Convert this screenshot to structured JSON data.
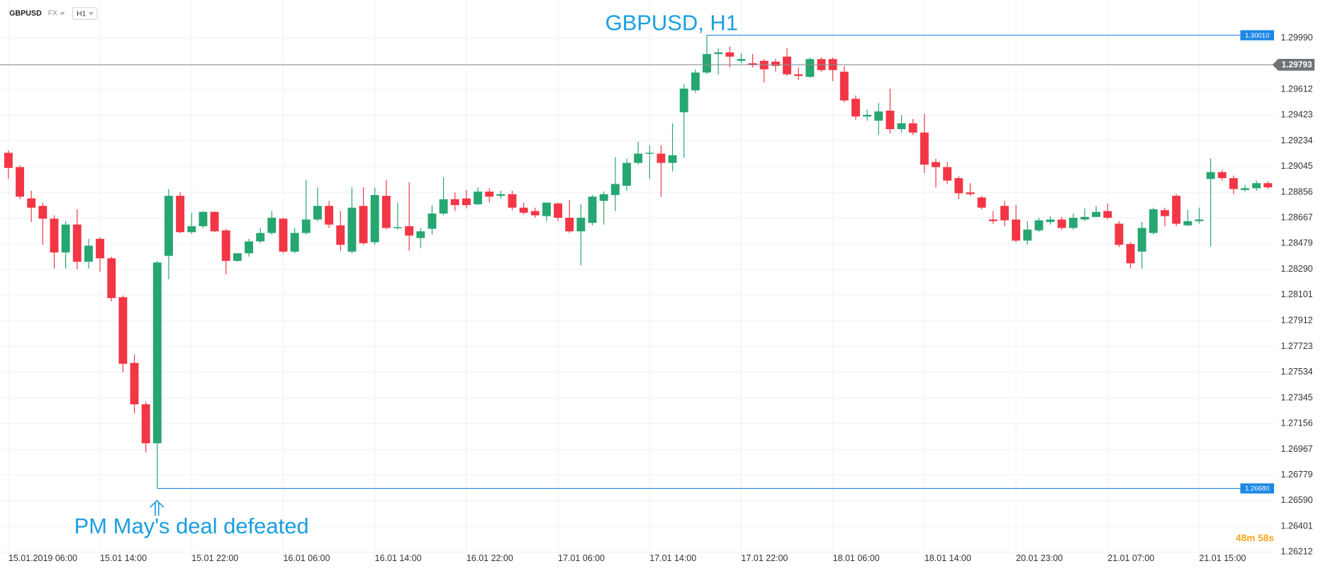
{
  "toolbar": {
    "symbol": "GBPUSD",
    "market": "FX",
    "timeframe": "H1"
  },
  "countdown": "48m 58s",
  "chart_data": {
    "type": "candlestick",
    "title": "GBPUSD, H1",
    "annotations": [
      "PM May's deal defeated"
    ],
    "up_color": "#26a671",
    "down_color": "#f23645",
    "grid": true,
    "categories": [
      "15.01.2019 06:00",
      null,
      null,
      null,
      null,
      null,
      null,
      null,
      "15.01 14:00",
      null,
      null,
      null,
      null,
      null,
      null,
      null,
      "15.01 22:00",
      null,
      null,
      null,
      null,
      null,
      null,
      null,
      "16.01 06:00",
      null,
      null,
      null,
      null,
      null,
      null,
      null,
      "16.01 14:00",
      null,
      null,
      null,
      null,
      null,
      null,
      null,
      "16.01 22:00",
      null,
      null,
      null,
      null,
      null,
      null,
      null,
      "17.01 06:00",
      null,
      null,
      null,
      null,
      null,
      null,
      null,
      "17.01 14:00",
      null,
      null,
      null,
      null,
      null,
      null,
      null,
      "17.01 22:00",
      null,
      null,
      null,
      null,
      null,
      null,
      null,
      "18.01 06:00",
      null,
      null,
      null,
      null,
      null,
      null,
      null,
      "18.01 14:00",
      null,
      null,
      null,
      null,
      null,
      null,
      null,
      "20.01 23:00",
      null,
      null,
      null,
      null,
      null,
      null,
      null,
      "21.01 07:00",
      null,
      null,
      null,
      null,
      null,
      null,
      null,
      "21.01 15:00",
      null,
      null,
      null,
      null,
      null,
      null
    ],
    "open": [
      1.29146,
      1.29041,
      1.28811,
      1.28756,
      1.28662,
      1.28414,
      1.28619,
      1.28346,
      1.28514,
      1.28371,
      1.28085,
      1.27602,
      1.27298,
      1.27012,
      1.28389,
      1.2883,
      1.28563,
      1.28607,
      1.28712,
      1.28576,
      1.28352,
      1.28408,
      1.28495,
      1.28557,
      1.28662,
      1.2842,
      1.28557,
      1.28656,
      1.28756,
      1.28613,
      1.2842,
      1.28756,
      1.28489,
      1.2883,
      1.28594,
      1.28607,
      1.2852,
      1.28588,
      1.287,
      1.28805,
      1.28811,
      1.28768,
      1.28861,
      1.2883,
      1.28842,
      1.28743,
      1.28718,
      1.28681,
      1.28774,
      1.28669,
      1.28569,
      1.28631,
      1.28793,
      1.28836,
      1.28904,
      1.29072,
      1.2914,
      1.2914,
      1.29072,
      1.29444,
      1.29605,
      1.29736,
      1.29872,
      1.29884,
      1.29822,
      1.29804,
      1.29822,
      1.29816,
      1.29853,
      1.29723,
      1.29704,
      1.29835,
      1.29835,
      1.29742,
      1.29543,
      1.29413,
      1.29382,
      1.29456,
      1.2932,
      1.29363,
      1.29295,
      1.29078,
      1.29041,
      1.2896,
      1.28855,
      1.28818,
      1.28656,
      1.28756,
      1.28656,
      1.28501,
      1.28576,
      1.28638,
      1.28656,
      1.28594,
      1.28656,
      1.28675,
      1.28718,
      1.28625,
      1.28476,
      1.2842,
      1.28557,
      1.28725,
      1.2883,
      1.28613,
      1.28644,
      1.28954,
      1.29004,
      1.2896,
      1.28873,
      1.28886,
      1.28923
    ],
    "high": [
      1.29165,
      1.29053,
      1.28867,
      1.2878,
      1.28687,
      1.28644,
      1.28731,
      1.28514,
      1.28526,
      1.28383,
      1.28098,
      1.27664,
      1.27316,
      1.28352,
      1.28879,
      1.28855,
      1.28706,
      1.28718,
      1.28715,
      1.28588,
      1.2841,
      1.28514,
      1.28594,
      1.28718,
      1.28669,
      1.28594,
      1.28948,
      1.28892,
      1.28793,
      1.28718,
      1.28892,
      1.28892,
      1.28892,
      1.28948,
      1.2878,
      1.28929,
      1.28594,
      1.28762,
      1.28966,
      1.28855,
      1.28873,
      1.28892,
      1.28886,
      1.28867,
      1.28867,
      1.2878,
      1.28743,
      1.28782,
      1.2878,
      1.28799,
      1.28768,
      1.28836,
      1.28861,
      1.29115,
      1.29103,
      1.29227,
      1.29202,
      1.29202,
      1.29363,
      1.29649,
      1.2976,
      1.3001,
      1.29915,
      1.29928,
      1.29878,
      1.29872,
      1.29835,
      1.29835,
      1.29915,
      1.29773,
      1.29847,
      1.29847,
      1.29847,
      1.29785,
      1.29568,
      1.29463,
      1.29512,
      1.29618,
      1.29425,
      1.29394,
      1.29432,
      1.29103,
      1.29078,
      1.28973,
      1.28923,
      1.2883,
      1.28718,
      1.28793,
      1.28762,
      1.28644,
      1.28669,
      1.28681,
      1.28675,
      1.287,
      1.28737,
      1.28756,
      1.28774,
      1.28644,
      1.28489,
      1.28638,
      1.28743,
      1.28743,
      1.28842,
      1.28725,
      1.28743,
      1.29103,
      1.29022,
      1.28979,
      1.28911,
      1.28942,
      1.28935
    ],
    "low": [
      1.28954,
      1.28805,
      1.28638,
      1.2847,
      1.28296,
      1.28296,
      1.2829,
      1.28296,
      1.28272,
      1.28054,
      1.27533,
      1.27229,
      1.26944,
      1.2668,
      1.28216,
      1.28557,
      1.28551,
      1.28594,
      1.28563,
      1.28253,
      1.28346,
      1.28383,
      1.28482,
      1.28545,
      1.28408,
      1.28408,
      1.28545,
      1.28644,
      1.28594,
      1.28427,
      1.28408,
      1.2847,
      1.2847,
      1.28582,
      1.28582,
      1.28427,
      1.28445,
      1.28545,
      1.28687,
      1.28718,
      1.28737,
      1.28762,
      1.2878,
      1.28811,
      1.28725,
      1.28693,
      1.28669,
      1.28644,
      1.28644,
      1.28557,
      1.28321,
      1.28613,
      1.28619,
      1.28718,
      1.28867,
      1.29059,
      1.28954,
      1.28824,
      1.2901,
      1.29109,
      1.29587,
      1.29723,
      1.29723,
      1.29773,
      1.29804,
      1.29773,
      1.29661,
      1.29742,
      1.29711,
      1.2968,
      1.29698,
      1.29742,
      1.29673,
      1.29518,
      1.29388,
      1.29382,
      1.29277,
      1.29289,
      1.29295,
      1.29277,
      1.28997,
      1.28892,
      1.28917,
      1.28805,
      1.2883,
      1.28731,
      1.28625,
      1.28607,
      1.28489,
      1.2847,
      1.28563,
      1.28619,
      1.28582,
      1.28582,
      1.28644,
      1.28674,
      1.28656,
      1.28452,
      1.28296,
      1.28296,
      1.28545,
      1.28607,
      1.28607,
      1.28607,
      1.28625,
      1.28458,
      1.28942,
      1.28842,
      1.28861,
      1.28867,
      1.2888
    ],
    "close": [
      1.29035,
      1.28824,
      1.28743,
      1.28662,
      1.28414,
      1.28619,
      1.28346,
      1.28464,
      1.28371,
      1.28079,
      1.27596,
      1.27298,
      1.27012,
      1.2834,
      1.2883,
      1.28563,
      1.28607,
      1.28712,
      1.28569,
      1.28352,
      1.28408,
      1.28495,
      1.28557,
      1.28669,
      1.2842,
      1.28557,
      1.28656,
      1.28756,
      1.28619,
      1.2847,
      1.28743,
      1.28482,
      1.28836,
      1.28594,
      1.286,
      1.28538,
      1.28569,
      1.287,
      1.28805,
      1.28762,
      1.28762,
      1.28861,
      1.28824,
      1.28842,
      1.28743,
      1.28706,
      1.28687,
      1.2878,
      1.28669,
      1.28569,
      1.28669,
      1.28824,
      1.28842,
      1.28917,
      1.29072,
      1.2914,
      1.29146,
      1.29072,
      1.29128,
      1.29618,
      1.29736,
      1.29872,
      1.29884,
      1.29853,
      1.29835,
      1.29791,
      1.2976,
      1.29785,
      1.29723,
      1.29711,
      1.29835,
      1.29754,
      1.29754,
      1.29531,
      1.29413,
      1.29425,
      1.2945,
      1.2932,
      1.29363,
      1.29295,
      1.29059,
      1.29041,
      1.28942,
      1.28849,
      1.28842,
      1.28743,
      1.28644,
      1.2865,
      1.28501,
      1.28582,
      1.2865,
      1.28656,
      1.28594,
      1.28669,
      1.28675,
      1.28712,
      1.28669,
      1.2847,
      1.28334,
      1.28594,
      1.28731,
      1.28681,
      1.28625,
      1.28644,
      1.28656,
      1.29004,
      1.2896,
      1.2888,
      1.28886,
      1.28923,
      1.28892
    ],
    "ylim": [
      1.262,
      1.30269
    ],
    "yticks": [
      {
        "value": 1.2999,
        "label": "1.29990"
      },
      1.29612,
      1.29423,
      1.29234,
      1.29045,
      1.28856,
      1.28667,
      1.28479,
      {
        "value": 1.2829,
        "label": "1.28290"
      },
      1.28101,
      1.27912,
      1.27723,
      1.27534,
      1.27345,
      1.27156,
      1.26967,
      1.26779,
      {
        "value": 1.2659,
        "label": "1.26590"
      },
      1.26401,
      1.26212
    ],
    "current_price": 1.29793,
    "levels": [
      {
        "value": 1.3001,
        "label": "1.30010",
        "color": "#1e88e5"
      },
      {
        "value": 1.2668,
        "label": "1.26680",
        "color": "#1e88e5"
      }
    ]
  }
}
